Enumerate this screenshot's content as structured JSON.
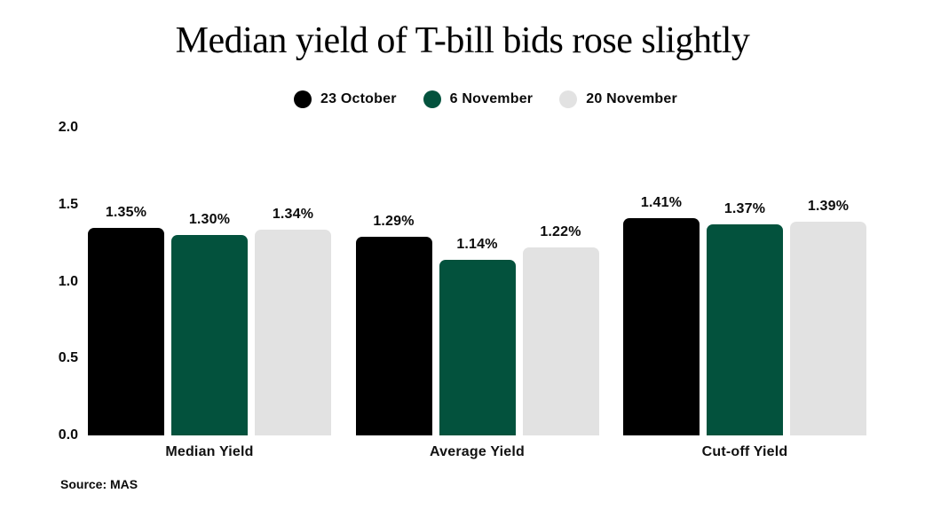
{
  "title": "Median yield of T-bill bids rose slightly",
  "source": "Source: MAS",
  "chart_data": {
    "type": "bar",
    "categories": [
      "Median Yield",
      "Average Yield",
      "Cut-off Yield"
    ],
    "series": [
      {
        "name": "23 October",
        "color": "#000000",
        "values": [
          1.35,
          1.29,
          1.41
        ],
        "value_labels": [
          "1.35%",
          "1.29%",
          "1.41%"
        ]
      },
      {
        "name": "6 November",
        "color": "#03523d",
        "values": [
          1.3,
          1.14,
          1.37
        ],
        "value_labels": [
          "1.30%",
          "1.14%",
          "1.37%"
        ]
      },
      {
        "name": "20 November",
        "color": "#e2e2e2",
        "values": [
          1.34,
          1.22,
          1.39
        ],
        "value_labels": [
          "1.34%",
          "1.22%",
          "1.39%"
        ]
      }
    ],
    "yticks": [
      {
        "value": 0.0,
        "label": "0.0"
      },
      {
        "value": 0.5,
        "label": "0.5"
      },
      {
        "value": 1.0,
        "label": "1.0"
      },
      {
        "value": 1.5,
        "label": "1.5"
      },
      {
        "value": 2.0,
        "label": "2.0"
      }
    ],
    "ylim": [
      0,
      2.0
    ],
    "xlabel": "",
    "ylabel": "",
    "grid": false,
    "legend_position": "top"
  }
}
